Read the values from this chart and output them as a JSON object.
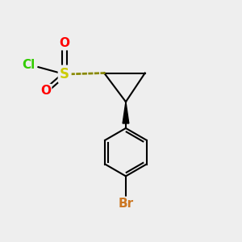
{
  "bg_color": "#eeeeee",
  "atom_colors": {
    "Cl": "#33cc00",
    "S": "#cccc00",
    "O": "#ff0000",
    "Br": "#cc7722",
    "C": "#000000"
  },
  "lw": 1.5,
  "font_size": 11
}
